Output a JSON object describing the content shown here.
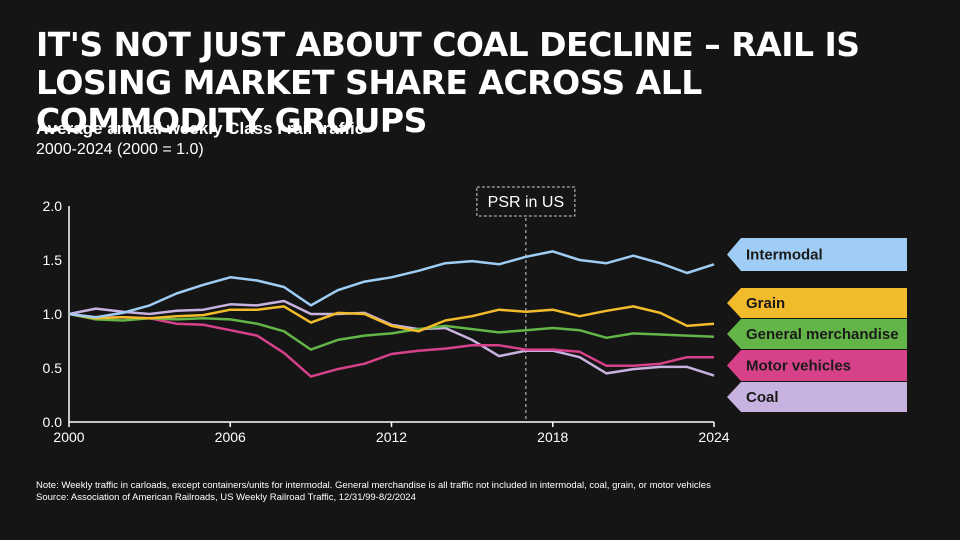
{
  "headline": "It's not just about coal decline – rail is losing market share across all commodity groups",
  "subtitle": "Average annual weekly Class I rail traffic",
  "subtitle2": "2000-2024 (2000 = 1.0)",
  "annotation": {
    "label": "PSR in US",
    "x": 2017
  },
  "footnote": {
    "note": "Note: Weekly traffic in carloads, except containers/units for intermodal. General merchandise is all traffic not included in intermodal, coal, grain, or motor vehicles",
    "source": "Source: Association of American Railroads, US Weekly Railroad Traffic, 12/31/99-8/2/2024"
  },
  "chart_data": {
    "type": "line",
    "title": "Average annual weekly Class I rail traffic",
    "subtitle": "2000-2024 (2000 = 1.0)",
    "xlim": [
      2000,
      2024
    ],
    "ylim": [
      0,
      2
    ],
    "xticks": [
      2000,
      2006,
      2012,
      2018,
      2024
    ],
    "xtick_labels": [
      "2000",
      "2006",
      "2012",
      "2018",
      "2024"
    ],
    "yticks": [
      0,
      0.5,
      1,
      1.5,
      2
    ],
    "ytick_labels": [
      "0.0",
      "0.5",
      "1.0",
      "1.5",
      "2.0"
    ],
    "grid": false,
    "legend": "right, label tags",
    "x": [
      2000,
      2001,
      2002,
      2003,
      2004,
      2005,
      2006,
      2007,
      2008,
      2009,
      2010,
      2011,
      2012,
      2013,
      2014,
      2015,
      2016,
      2017,
      2018,
      2019,
      2020,
      2021,
      2022,
      2023,
      2024
    ],
    "series": [
      {
        "name": "Intermodal",
        "color": "#9fcdf5",
        "values": [
          1.0,
          0.97,
          1.01,
          1.08,
          1.19,
          1.27,
          1.34,
          1.31,
          1.25,
          1.08,
          1.22,
          1.3,
          1.34,
          1.4,
          1.47,
          1.49,
          1.46,
          1.53,
          1.58,
          1.5,
          1.47,
          1.54,
          1.47,
          1.38,
          1.46
        ]
      },
      {
        "name": "Grain",
        "color": "#f1bb2c",
        "values": [
          1.0,
          0.96,
          0.97,
          0.96,
          0.98,
          0.99,
          1.04,
          1.04,
          1.07,
          0.92,
          1.01,
          1.0,
          0.89,
          0.84,
          0.94,
          0.98,
          1.04,
          1.02,
          1.04,
          0.98,
          1.03,
          1.07,
          1.01,
          0.89,
          0.91
        ]
      },
      {
        "name": "General merchandise",
        "color": "#63b547",
        "values": [
          1.0,
          0.95,
          0.94,
          0.96,
          0.95,
          0.96,
          0.95,
          0.91,
          0.84,
          0.67,
          0.76,
          0.8,
          0.82,
          0.86,
          0.89,
          0.86,
          0.83,
          0.85,
          0.87,
          0.85,
          0.78,
          0.82,
          0.81,
          0.8,
          0.79
        ]
      },
      {
        "name": "Motor vehicles",
        "color": "#d6418a",
        "values": [
          1.0,
          0.97,
          0.97,
          0.96,
          0.91,
          0.9,
          0.85,
          0.8,
          0.64,
          0.42,
          0.49,
          0.54,
          0.63,
          0.66,
          0.68,
          0.71,
          0.71,
          0.67,
          0.67,
          0.65,
          0.52,
          0.52,
          0.54,
          0.6,
          0.6
        ]
      },
      {
        "name": "Coal",
        "color": "#c8b2df",
        "values": [
          1.0,
          1.05,
          1.02,
          1.0,
          1.03,
          1.04,
          1.09,
          1.08,
          1.12,
          1.0,
          1.0,
          1.01,
          0.9,
          0.86,
          0.87,
          0.76,
          0.61,
          0.66,
          0.66,
          0.6,
          0.45,
          0.49,
          0.51,
          0.51,
          0.43
        ]
      }
    ]
  }
}
